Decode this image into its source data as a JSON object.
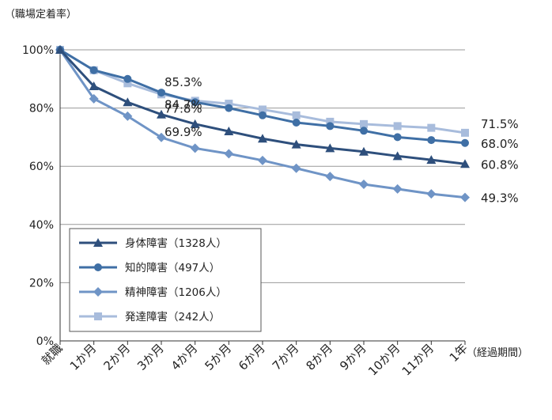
{
  "chart_data": {
    "type": "line",
    "ylabel": "（職場定着率）",
    "xlabel": "（経過期間）",
    "categories": [
      "就職",
      "1か月",
      "2か月",
      "3か月",
      "4か月",
      "5か月",
      "6か月",
      "7か月",
      "8か月",
      "9か月",
      "10か月",
      "11か月",
      "1年"
    ],
    "y_ticks": [
      "0%",
      "20%",
      "40%",
      "60%",
      "80%",
      "100%"
    ],
    "ylim": [
      0,
      100
    ],
    "grid": "horizontal",
    "legend_position": "bottom-left",
    "series": [
      {
        "name": "身体障害（1328人）",
        "marker": "triangle",
        "color": "#2e4f7c",
        "values": [
          100,
          87.5,
          82,
          77.8,
          74.5,
          72,
          69.5,
          67.5,
          66.2,
          65,
          63.5,
          62.2,
          60.8
        ]
      },
      {
        "name": "知的障害（497人）",
        "marker": "circle",
        "color": "#3f6fa5",
        "values": [
          100,
          93,
          90,
          85.3,
          82,
          80,
          77.5,
          75,
          73.8,
          72.2,
          70,
          69,
          68.0
        ]
      },
      {
        "name": "精神障害（1206人）",
        "marker": "diamond",
        "color": "#6f94c6",
        "values": [
          100,
          83.2,
          77.2,
          69.9,
          66.2,
          64.3,
          62,
          59.3,
          56.5,
          53.8,
          52.2,
          50.5,
          49.3
        ]
      },
      {
        "name": "発達障害（242人）",
        "marker": "square",
        "color": "#a8bcdc",
        "values": [
          100,
          93,
          88.5,
          84.7,
          82.5,
          81.5,
          79.5,
          77.5,
          75.3,
          74.5,
          73.8,
          73.2,
          71.5
        ]
      }
    ],
    "annotations": [
      {
        "text": "85.3%",
        "category_index": 3,
        "series_index": 1
      },
      {
        "text": "84.7%",
        "category_index": 3,
        "series_index": 3
      },
      {
        "text": "77.8%",
        "category_index": 3,
        "series_index": 0
      },
      {
        "text": "69.9%",
        "category_index": 3,
        "series_index": 2
      },
      {
        "text": "71.5%",
        "category_index": 12,
        "series_index": 3
      },
      {
        "text": "68.0%",
        "category_index": 12,
        "series_index": 1
      },
      {
        "text": "60.8%",
        "category_index": 12,
        "series_index": 0
      },
      {
        "text": "49.3%",
        "category_index": 12,
        "series_index": 2
      }
    ]
  }
}
